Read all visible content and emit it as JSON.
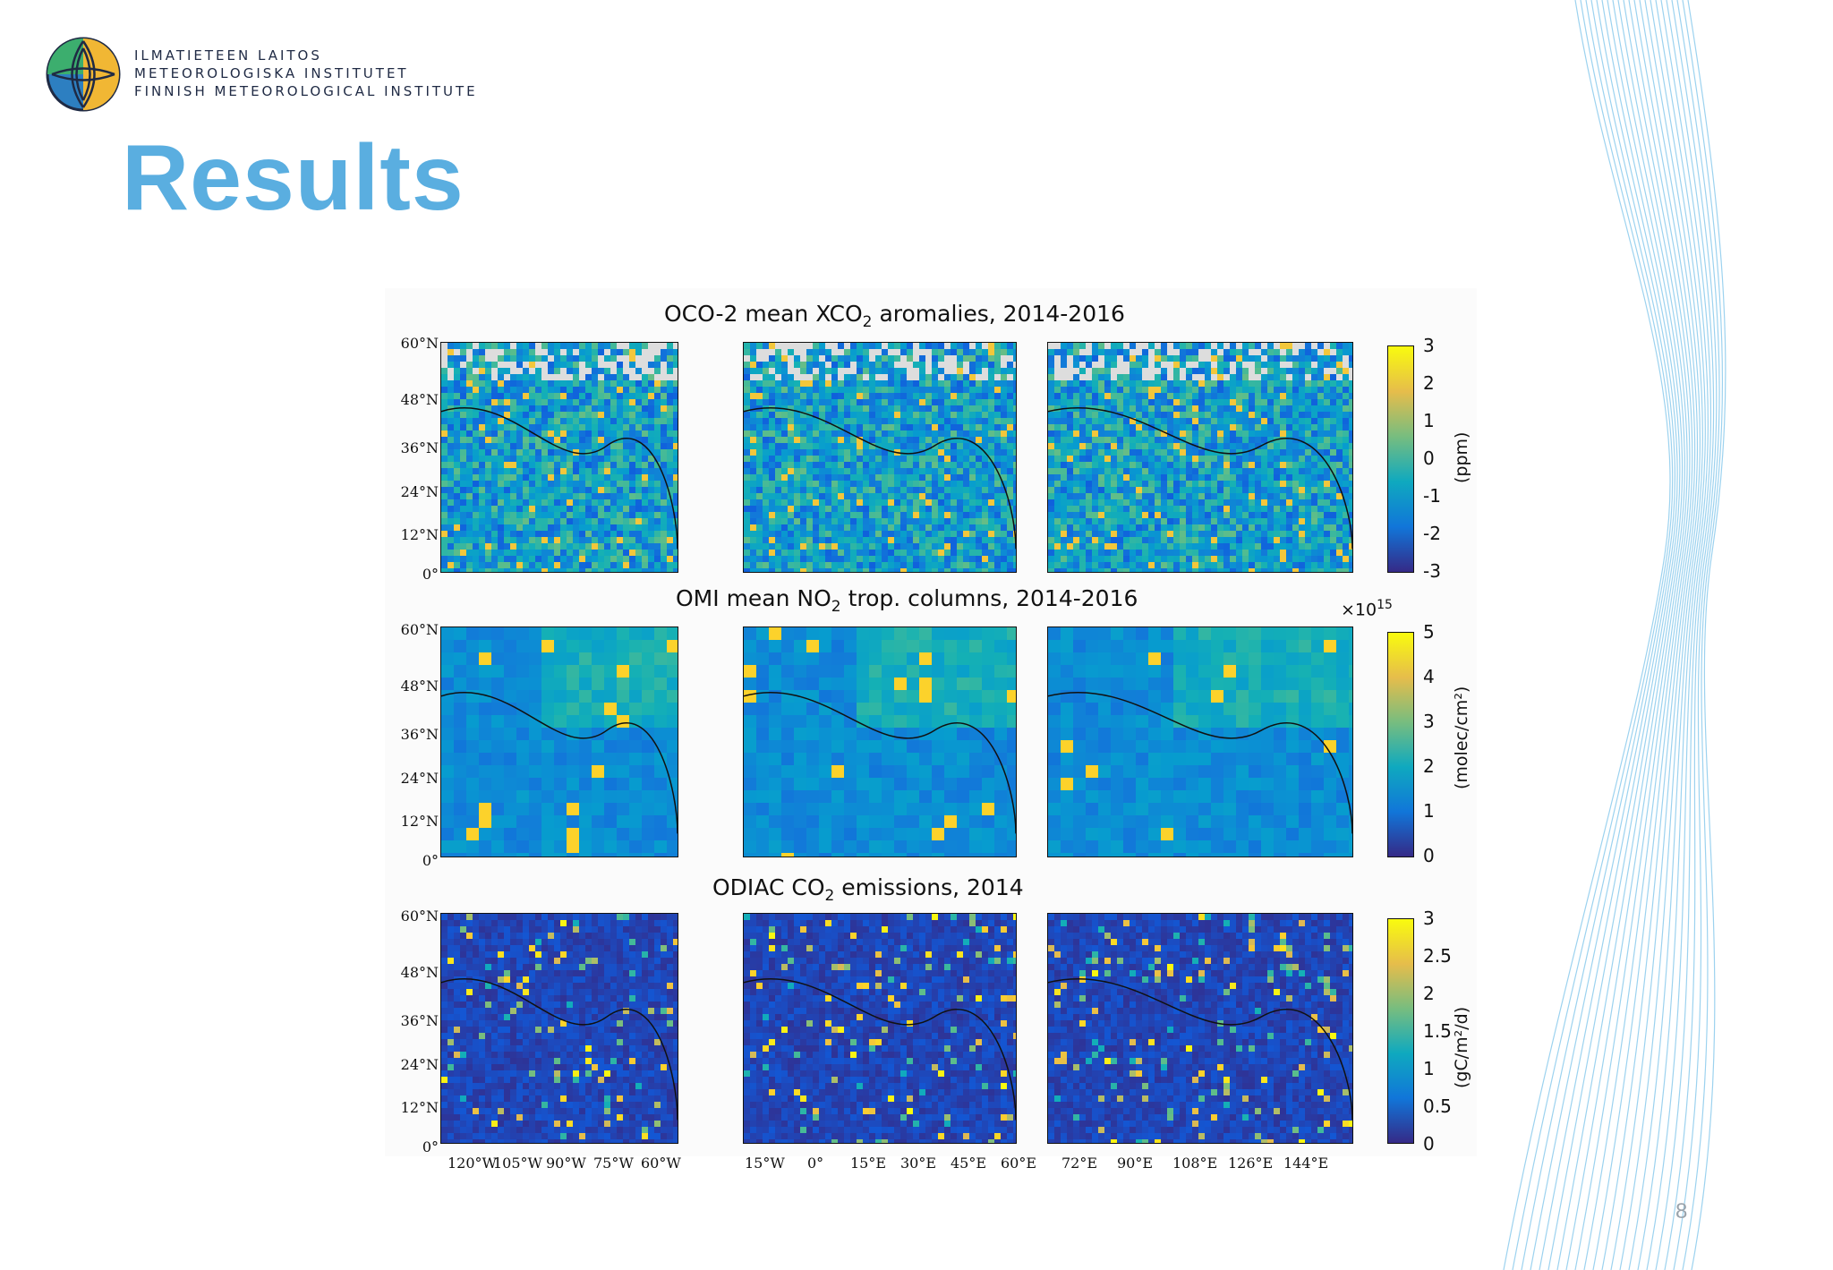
{
  "header": {
    "logo_lines": [
      "ILMATIETEEN LAITOS",
      "METEOROLOGISKA INSTITUTET",
      "FINNISH METEOROLOGICAL INSTITUTE"
    ],
    "title": "Results"
  },
  "figure": {
    "rows": [
      {
        "title_pre": "OCO-2 mean XCO",
        "title_sub": "2",
        "title_post": " aromalies, 2014-2016",
        "colorbar": {
          "ticks": [
            "3",
            "2",
            "1",
            "0",
            "-1",
            "-2",
            "-3"
          ],
          "unit": "(ppm)",
          "exponent": ""
        }
      },
      {
        "title_pre": "OMI mean NO",
        "title_sub": "2",
        "title_post": " trop. columns, 2014-2016",
        "colorbar": {
          "ticks": [
            "5",
            "4",
            "3",
            "2",
            "1",
            "0"
          ],
          "unit": "(molec/cm²)",
          "exponent_base": "×10",
          "exponent_power": "15"
        }
      },
      {
        "title_pre": "ODIAC CO",
        "title_sub": "2",
        "title_post": " emissions, 2014",
        "colorbar": {
          "ticks": [
            "3",
            "2.5",
            "2",
            "1.5",
            "1",
            "0.5",
            "0"
          ],
          "unit": "(gC/m²/d)",
          "exponent": ""
        }
      }
    ],
    "lat_labels": [
      "60°N",
      "48°N",
      "36°N",
      "24°N",
      "12°N",
      "0°"
    ],
    "lon_labels": [
      [
        "120°W",
        "105°W",
        "90°W",
        "75°W",
        "60°W"
      ],
      [
        "15°W",
        "0°",
        "15°E",
        "30°E",
        "45°E",
        "60°E"
      ],
      [
        "72°E",
        "90°E",
        "108°E",
        "126°E",
        "144°E"
      ]
    ],
    "colors": {
      "parula_low": "#352a87",
      "parula_mid": "#21b6a8",
      "parula_high": "#f9fb0e"
    }
  },
  "footer": {
    "page_number": "8"
  }
}
